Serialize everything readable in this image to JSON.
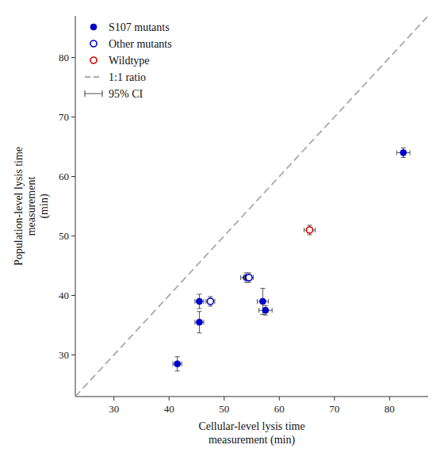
{
  "chart_data": {
    "type": "scatter",
    "xlabel": "Cellular-level lysis time\nmeasurement (min)",
    "ylabel": "Population-level lysis time\nmeasurement\n(min)",
    "xlim": [
      23,
      87
    ],
    "ylim": [
      23,
      87
    ],
    "xticks": [
      30,
      40,
      50,
      60,
      70,
      80
    ],
    "yticks": [
      30,
      40,
      50,
      60,
      70,
      80
    ],
    "legend": "upper left",
    "series": [
      {
        "name": "S107 mutants",
        "color": "#0000CC",
        "marker": "filled-circle",
        "x": [
          41.5,
          45.5,
          45.5,
          54.0,
          57.0,
          57.5,
          82.5
        ],
        "y": [
          28.5,
          39.0,
          35.5,
          43.0,
          39.0,
          37.5,
          64.0
        ],
        "xerr": [
          0.8,
          0.8,
          0.8,
          1.0,
          1.0,
          1.2,
          1.2
        ],
        "yerr": [
          1.2,
          1.2,
          1.8,
          0.8,
          2.2,
          0.8,
          0.8
        ]
      },
      {
        "name": "Other mutants",
        "color": "#0000CC",
        "marker": "open-circle",
        "x": [
          47.5,
          54.5
        ],
        "y": [
          39.0,
          43.0
        ],
        "xerr": [
          0.8,
          0.8
        ],
        "yerr": [
          0.8,
          0.8
        ]
      },
      {
        "name": "Wildtype",
        "color": "#CC0000",
        "marker": "open-circle",
        "x": [
          65.5
        ],
        "y": [
          51.0
        ],
        "xerr": [
          1.0
        ],
        "yerr": [
          0.8
        ]
      },
      {
        "name": "1:1 ratio",
        "type": "line",
        "line_style": "dashed",
        "color": "#aaaaaa",
        "x": [
          23,
          87
        ],
        "y": [
          23,
          87
        ]
      }
    ],
    "ci": {
      "name": "95% CI",
      "color": "#555555"
    }
  }
}
